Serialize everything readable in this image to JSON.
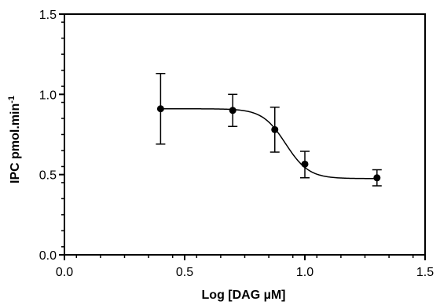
{
  "chart_data": {
    "type": "scatter",
    "title": "",
    "xlabel": "Log [DAG µM]",
    "ylabel_main": "IPC pmol.min",
    "ylabel_sup": "-1",
    "xlim": [
      0.0,
      1.5
    ],
    "ylim": [
      0.0,
      1.5
    ],
    "xticks": [
      "0.0",
      "0.5",
      "1.0",
      "1.5"
    ],
    "yticks": [
      "0.0",
      "0.5",
      "1.0",
      "1.5"
    ],
    "grid": false,
    "legend": "none",
    "series": [
      {
        "points": [
          {
            "x": 0.4,
            "y": 0.91,
            "err_low": 0.69,
            "err_high": 1.13
          },
          {
            "x": 0.7,
            "y": 0.9,
            "err_low": 0.8,
            "err_high": 1.0
          },
          {
            "x": 0.875,
            "y": 0.78,
            "err_low": 0.64,
            "err_high": 0.92
          },
          {
            "x": 1.0,
            "y": 0.565,
            "err_low": 0.48,
            "err_high": 0.645
          },
          {
            "x": 1.3,
            "y": 0.48,
            "err_low": 0.43,
            "err_high": 0.53
          }
        ],
        "fit": {
          "top": 0.91,
          "bottom": 0.475,
          "logIC50": 0.92,
          "hill": -9.0
        }
      }
    ],
    "colors": {
      "marker": "#000000",
      "line": "#000000"
    }
  }
}
